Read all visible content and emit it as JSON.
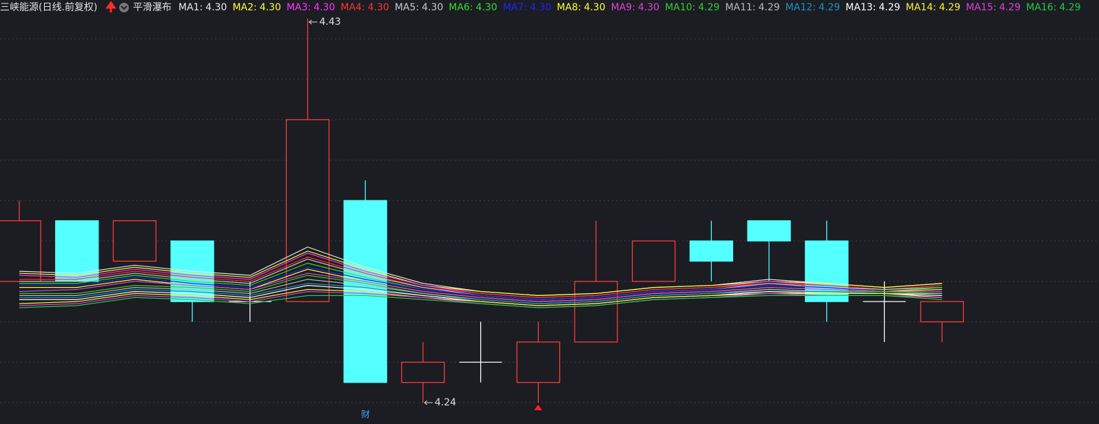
{
  "chart_data": {
    "type": "candlestick",
    "title": "三峡能源(日线.前复权)",
    "subtitle": "平滑瀑布",
    "marker_text": "财",
    "ylim": [
      4.24,
      4.43
    ],
    "yticks": [
      4.24,
      4.26,
      4.28,
      4.3,
      4.32,
      4.34,
      4.36,
      4.38,
      4.4,
      4.42
    ],
    "grid": true,
    "up_color": "#ff3b3b",
    "down_color": "#54ffff",
    "flat_color": "#ffffff",
    "open": [
      4.3,
      4.33,
      4.31,
      4.32,
      4.29,
      4.29,
      4.34,
      4.25,
      4.26,
      4.25,
      4.27,
      4.3,
      4.32,
      4.33,
      4.32,
      4.29,
      4.28
    ],
    "high": [
      4.34,
      4.33,
      4.33,
      4.32,
      4.3,
      4.43,
      4.35,
      4.27,
      4.28,
      4.28,
      4.33,
      4.32,
      4.33,
      4.33,
      4.33,
      4.3,
      4.29
    ],
    "low": [
      4.3,
      4.3,
      4.31,
      4.28,
      4.28,
      4.29,
      4.25,
      4.24,
      4.25,
      4.24,
      4.27,
      4.3,
      4.3,
      4.3,
      4.28,
      4.27,
      4.27
    ],
    "close": [
      4.33,
      4.3,
      4.33,
      4.29,
      4.29,
      4.38,
      4.25,
      4.26,
      4.26,
      4.27,
      4.3,
      4.32,
      4.31,
      4.32,
      4.29,
      4.29,
      4.29
    ],
    "annotations": [
      {
        "label": "4.43",
        "value": 4.43,
        "side": "high"
      },
      {
        "label": "4.24",
        "value": 4.24,
        "side": "low"
      }
    ],
    "series": [
      {
        "name": "MA1:",
        "last_label": "4.30",
        "color": "#e8e8e8",
        "values": [
          4.305,
          4.304,
          4.308,
          4.305,
          4.303,
          4.317,
          4.307,
          4.299,
          4.295,
          4.293,
          4.294,
          4.297,
          4.298,
          4.301,
          4.299,
          4.297,
          4.299
        ]
      },
      {
        "name": "MA2:",
        "last_label": "4.30",
        "color": "#ffff33",
        "values": [
          4.304,
          4.303,
          4.307,
          4.304,
          4.302,
          4.315,
          4.306,
          4.298,
          4.295,
          4.293,
          4.294,
          4.297,
          4.298,
          4.3,
          4.299,
          4.297,
          4.299
        ]
      },
      {
        "name": "MA3:",
        "last_label": "4.30",
        "color": "#ff33ff",
        "values": [
          4.303,
          4.302,
          4.306,
          4.303,
          4.301,
          4.314,
          4.305,
          4.298,
          4.294,
          4.292,
          4.293,
          4.296,
          4.297,
          4.3,
          4.298,
          4.296,
          4.298
        ]
      },
      {
        "name": "MA4:",
        "last_label": "4.30",
        "color": "#ff3333",
        "values": [
          4.301,
          4.301,
          4.305,
          4.302,
          4.3,
          4.312,
          4.304,
          4.297,
          4.294,
          4.292,
          4.293,
          4.296,
          4.297,
          4.299,
          4.298,
          4.296,
          4.298
        ]
      },
      {
        "name": "MA5:",
        "last_label": "4.30",
        "color": "#c8c8c8",
        "values": [
          4.3,
          4.3,
          4.304,
          4.301,
          4.299,
          4.311,
          4.303,
          4.297,
          4.293,
          4.291,
          4.292,
          4.295,
          4.296,
          4.299,
          4.297,
          4.296,
          4.297
        ]
      },
      {
        "name": "MA6:",
        "last_label": "4.30",
        "color": "#33dd33",
        "values": [
          4.299,
          4.299,
          4.303,
          4.3,
          4.298,
          4.309,
          4.302,
          4.296,
          4.293,
          4.291,
          4.292,
          4.295,
          4.296,
          4.298,
          4.297,
          4.295,
          4.297
        ]
      },
      {
        "name": "MA7:",
        "last_label": "4.30",
        "color": "#2222ff",
        "values": [
          4.298,
          4.298,
          4.302,
          4.299,
          4.297,
          4.307,
          4.301,
          4.296,
          4.293,
          4.291,
          4.292,
          4.295,
          4.296,
          4.298,
          4.297,
          4.295,
          4.296
        ]
      },
      {
        "name": "MA8:",
        "last_label": "4.30",
        "color": "#ffff33",
        "values": [
          4.297,
          4.297,
          4.301,
          4.298,
          4.296,
          4.306,
          4.3,
          4.295,
          4.292,
          4.29,
          4.291,
          4.294,
          4.295,
          4.297,
          4.296,
          4.295,
          4.296
        ]
      },
      {
        "name": "MA9:",
        "last_label": "4.30",
        "color": "#e040e0",
        "values": [
          4.295,
          4.296,
          4.3,
          4.298,
          4.296,
          4.304,
          4.3,
          4.295,
          4.292,
          4.29,
          4.291,
          4.294,
          4.295,
          4.297,
          4.296,
          4.295,
          4.295
        ]
      },
      {
        "name": "MA10:",
        "last_label": "4.29",
        "color": "#33cc33",
        "values": [
          4.294,
          4.294,
          4.298,
          4.297,
          4.295,
          4.303,
          4.299,
          4.294,
          4.291,
          4.289,
          4.29,
          4.293,
          4.294,
          4.296,
          4.295,
          4.295,
          4.294
        ]
      },
      {
        "name": "MA11:",
        "last_label": "4.29",
        "color": "#bbbbbb",
        "values": [
          4.293,
          4.293,
          4.297,
          4.296,
          4.294,
          4.301,
          4.298,
          4.294,
          4.291,
          4.289,
          4.29,
          4.293,
          4.294,
          4.296,
          4.295,
          4.294,
          4.294
        ]
      },
      {
        "name": "MA12:",
        "last_label": "4.29",
        "color": "#1e90c8",
        "values": [
          4.292,
          4.292,
          4.296,
          4.295,
          4.293,
          4.299,
          4.297,
          4.293,
          4.291,
          4.289,
          4.29,
          4.293,
          4.294,
          4.295,
          4.295,
          4.294,
          4.293
        ]
      },
      {
        "name": "MA13:",
        "last_label": "4.29",
        "color": "#ffffff",
        "values": [
          4.291,
          4.291,
          4.295,
          4.294,
          4.292,
          4.298,
          4.296,
          4.293,
          4.29,
          4.288,
          4.289,
          4.292,
          4.293,
          4.295,
          4.294,
          4.294,
          4.293
        ]
      },
      {
        "name": "MA14:",
        "last_label": "4.29",
        "color": "#ffee44",
        "values": [
          4.289,
          4.29,
          4.294,
          4.293,
          4.291,
          4.296,
          4.295,
          4.292,
          4.29,
          4.288,
          4.289,
          4.292,
          4.293,
          4.294,
          4.294,
          4.294,
          4.292
        ]
      },
      {
        "name": "MA15:",
        "last_label": "4.29",
        "color": "#e040e0",
        "values": [
          4.288,
          4.289,
          4.293,
          4.292,
          4.29,
          4.295,
          4.294,
          4.292,
          4.289,
          4.287,
          4.288,
          4.291,
          4.292,
          4.294,
          4.293,
          4.293,
          4.292
        ]
      },
      {
        "name": "MA16:",
        "last_label": "4.29",
        "color": "#22cc44",
        "values": [
          4.287,
          4.288,
          4.292,
          4.291,
          4.289,
          4.293,
          4.293,
          4.291,
          4.289,
          4.287,
          4.288,
          4.291,
          4.292,
          4.293,
          4.293,
          4.293,
          4.291
        ]
      }
    ]
  }
}
